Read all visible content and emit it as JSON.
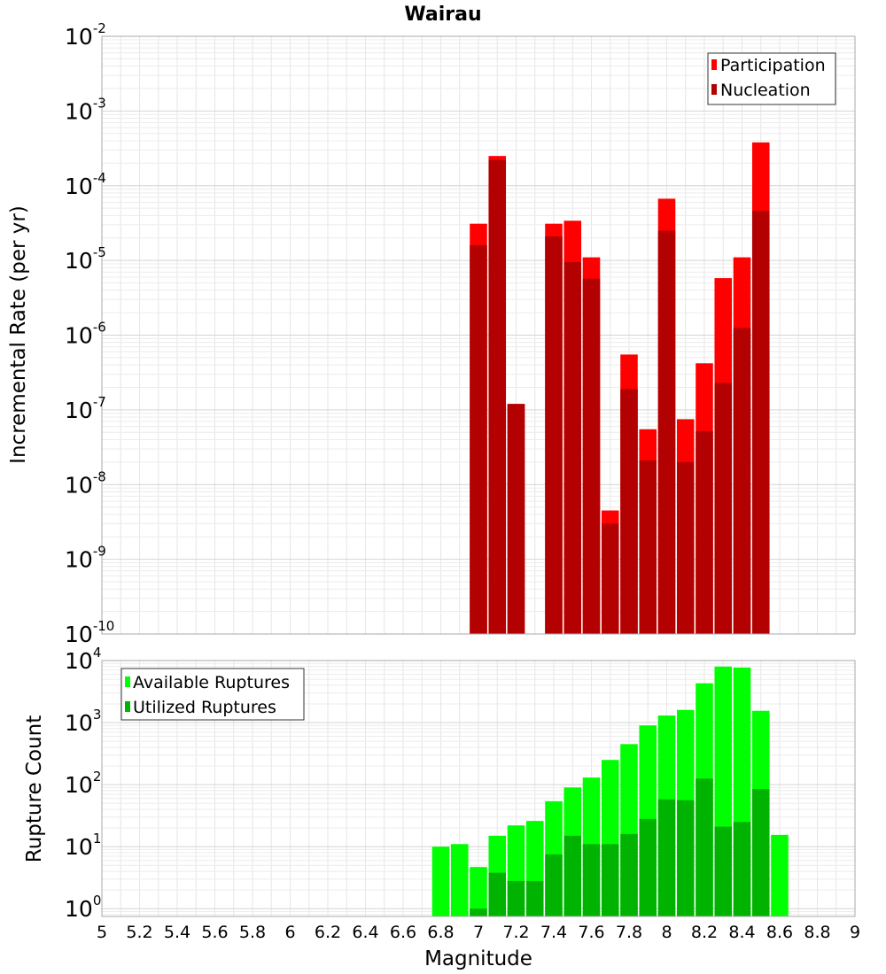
{
  "chart_data": [
    {
      "type": "bar",
      "title": "Wairau",
      "xlabel": "",
      "ylabel": "Incremental Rate (per yr)",
      "yscale": "log",
      "ylim": [
        1e-10,
        0.01
      ],
      "y_tick_labels": [
        {
          "base": "10",
          "exp": "-10"
        },
        {
          "base": "10",
          "exp": "-9"
        },
        {
          "base": "10",
          "exp": "-8"
        },
        {
          "base": "10",
          "exp": "-7"
        },
        {
          "base": "10",
          "exp": "-6"
        },
        {
          "base": "10",
          "exp": "-5"
        },
        {
          "base": "10",
          "exp": "-4"
        },
        {
          "base": "10",
          "exp": "-3"
        },
        {
          "base": "10",
          "exp": "-2"
        }
      ],
      "legend_position": "top-right",
      "grid": true,
      "x": [
        7.0,
        7.1,
        7.2,
        7.3,
        7.4,
        7.5,
        7.6,
        7.7,
        7.8,
        7.9,
        8.0,
        8.1,
        8.2,
        8.3,
        8.4,
        8.5
      ],
      "series": [
        {
          "name": "Participation",
          "color": "#ff0000",
          "values": [
            3.1e-05,
            0.00025,
            1.2e-07,
            null,
            3.1e-05,
            3.4e-05,
            1.1e-05,
            4.5e-09,
            5.5e-07,
            5.5e-08,
            6.7e-05,
            7.5e-08,
            4.2e-07,
            5.8e-06,
            1.1e-05,
            0.00038
          ]
        },
        {
          "name": "Nucleation",
          "color": "#b30000",
          "values": [
            1.6e-05,
            0.00022,
            1.2e-07,
            null,
            2.1e-05,
            9.5e-06,
            5.7e-06,
            3e-09,
            1.9e-07,
            2.1e-08,
            2.5e-05,
            2e-08,
            5.2e-08,
            2.3e-07,
            1.25e-06,
            4.6e-05
          ]
        }
      ]
    },
    {
      "type": "bar",
      "title": "",
      "xlabel": "Magnitude",
      "ylabel": "Rupture Count",
      "yscale": "log",
      "ylim": [
        0.75,
        10000
      ],
      "xlim": [
        5,
        9
      ],
      "x_ticks": [
        "5",
        "5.2",
        "5.4",
        "5.6",
        "5.8",
        "6",
        "6.2",
        "6.4",
        "6.6",
        "6.8",
        "7",
        "7.2",
        "7.4",
        "7.6",
        "7.8",
        "8",
        "8.2",
        "8.4",
        "8.6",
        "8.8",
        "9"
      ],
      "y_tick_labels": [
        {
          "base": "10",
          "exp": "0"
        },
        {
          "base": "10",
          "exp": "1"
        },
        {
          "base": "10",
          "exp": "2"
        },
        {
          "base": "10",
          "exp": "3"
        },
        {
          "base": "10",
          "exp": "4"
        }
      ],
      "legend_position": "top-left",
      "grid": true,
      "x": [
        6.8,
        6.9,
        7.0,
        7.1,
        7.2,
        7.3,
        7.4,
        7.5,
        7.6,
        7.7,
        7.8,
        7.9,
        8.0,
        8.1,
        8.2,
        8.3,
        8.4,
        8.5,
        8.6
      ],
      "series": [
        {
          "name": "Available Ruptures",
          "color": "#00ff00",
          "values": [
            10,
            11,
            4.7,
            15,
            22,
            26,
            54,
            90,
            130,
            250,
            450,
            900,
            1300,
            1600,
            4300,
            8000,
            7700,
            1550,
            15.5
          ]
        },
        {
          "name": "Utilized Ruptures",
          "color": "#00b300",
          "values": [
            null,
            null,
            1,
            3.8,
            2.8,
            2.8,
            7.5,
            15,
            11,
            11,
            16,
            28,
            58,
            56,
            125,
            21,
            25,
            85,
            null
          ]
        }
      ]
    }
  ]
}
